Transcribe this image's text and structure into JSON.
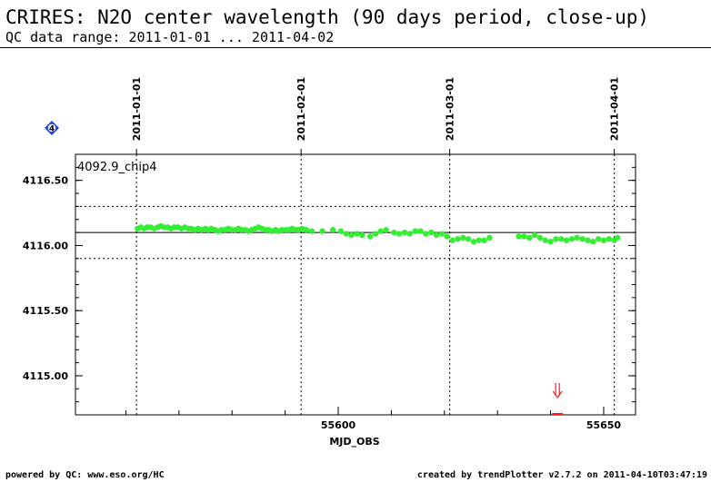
{
  "header": {
    "title": "CRIRES: N2O center wavelength (90 days period, close-up)",
    "subtitle": "QC data range: 2011-01-01 ... 2011-04-02"
  },
  "footer": {
    "left": "powered by QC: www.eso.org/HC",
    "right": "created by trendPlotter v2.7.2 on 2011-04-10T03:47:19"
  },
  "colors": {
    "points": "#33ee33",
    "outlier": "#ee2222",
    "badge": "#1a44dd",
    "reference_line": "#000000"
  },
  "chart_data": {
    "type": "scatter",
    "series_label": "4092.9_chip4",
    "xlabel": "MJD_OBS",
    "ylabel": "",
    "xlim": [
      55550.5,
      55656.0
    ],
    "ylim": [
      4114.7,
      4116.7
    ],
    "x_ticks": [
      55600,
      55650
    ],
    "x_tick_labels": [
      "55600",
      "55650"
    ],
    "y_ticks": [
      4115.0,
      4115.5,
      4116.0,
      4116.5
    ],
    "y_tick_labels": [
      "4115.00",
      "4115.50",
      "4116.00",
      "4116.50"
    ],
    "date_markers": [
      {
        "label": "2011-01-01",
        "x": 55562
      },
      {
        "label": "2011-02-01",
        "x": 55593
      },
      {
        "label": "2011-03-01",
        "x": 55621
      },
      {
        "label": "2011-04-01",
        "x": 55652
      }
    ],
    "reference": {
      "value": 4116.1,
      "lower": 4115.9,
      "upper": 4116.3
    },
    "badge": "4",
    "grid": false,
    "outliers": [
      {
        "x": 55641.3,
        "y": 4114.65,
        "direction": "down"
      }
    ],
    "x": [
      55562.2,
      55562.8,
      55563.4,
      55564.0,
      55564.6,
      55565.3,
      55566.0,
      55566.6,
      55567.2,
      55567.9,
      55568.5,
      55569.1,
      55569.8,
      55570.4,
      55571.1,
      55571.7,
      55572.3,
      55573.0,
      55573.6,
      55574.2,
      55574.9,
      55575.5,
      55576.1,
      55576.8,
      55577.4,
      55578.0,
      55578.7,
      55579.3,
      55579.9,
      55580.6,
      55581.2,
      55581.8,
      55582.5,
      55583.1,
      55583.7,
      55584.4,
      55585.0,
      55585.6,
      55586.3,
      55586.9,
      55587.5,
      55588.2,
      55588.8,
      55589.4,
      55590.1,
      55590.7,
      55591.3,
      55592.0,
      55592.6,
      55593.2,
      55594.0,
      55595.0,
      55597.0,
      55599.0,
      55600.5,
      55601.5,
      55602.5,
      55603.5,
      55604.5,
      55606.0,
      55607.0,
      55608.0,
      55609.0,
      55610.5,
      55611.5,
      55612.5,
      55613.5,
      55614.5,
      55615.5,
      55616.5,
      55617.5,
      55618.5,
      55619.5,
      55620.5,
      55621.5,
      55622.5,
      55623.5,
      55624.5,
      55625.5,
      55626.5,
      55627.5,
      55628.5,
      55634.0,
      55635.0,
      55636.0,
      55637.0,
      55638.0,
      55639.0,
      55640.0,
      55641.0,
      55642.0,
      55643.0,
      55644.0,
      55645.0,
      55646.0,
      55647.0,
      55648.0,
      55649.0,
      55650.0,
      55651.0,
      55652.0,
      55652.6
    ],
    "y": [
      4116.13,
      4116.14,
      4116.13,
      4116.14,
      4116.14,
      4116.13,
      4116.14,
      4116.15,
      4116.14,
      4116.14,
      4116.13,
      4116.14,
      4116.14,
      4116.13,
      4116.14,
      4116.13,
      4116.13,
      4116.12,
      4116.13,
      4116.12,
      4116.13,
      4116.12,
      4116.13,
      4116.12,
      4116.11,
      4116.12,
      4116.12,
      4116.13,
      4116.12,
      4116.12,
      4116.13,
      4116.12,
      4116.12,
      4116.11,
      4116.12,
      4116.13,
      4116.14,
      4116.13,
      4116.12,
      4116.12,
      4116.11,
      4116.12,
      4116.11,
      4116.12,
      4116.12,
      4116.12,
      4116.13,
      4116.12,
      4116.12,
      4116.13,
      4116.12,
      4116.11,
      4116.11,
      4116.12,
      4116.11,
      4116.09,
      4116.08,
      4116.09,
      4116.08,
      4116.07,
      4116.09,
      4116.11,
      4116.12,
      4116.1,
      4116.09,
      4116.1,
      4116.09,
      4116.11,
      4116.11,
      4116.09,
      4116.1,
      4116.08,
      4116.09,
      4116.07,
      4116.04,
      4116.05,
      4116.06,
      4116.05,
      4116.03,
      4116.04,
      4116.04,
      4116.06,
      4116.07,
      4116.07,
      4116.06,
      4116.08,
      4116.06,
      4116.04,
      4116.03,
      4116.05,
      4116.05,
      4116.04,
      4116.05,
      4116.06,
      4116.05,
      4116.04,
      4116.03,
      4116.05,
      4116.04,
      4116.05,
      4116.04,
      4116.06
    ]
  }
}
